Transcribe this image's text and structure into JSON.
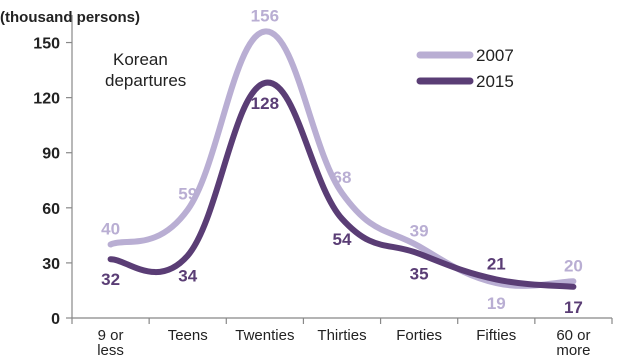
{
  "chart_data": {
    "type": "line",
    "unit_label": "(thousand persons)",
    "annotation": [
      "Korean",
      "departures"
    ],
    "categories": [
      [
        "9 or",
        "less"
      ],
      [
        "Teens"
      ],
      [
        "Twenties"
      ],
      [
        "Thirties"
      ],
      [
        "Forties"
      ],
      [
        "Fifties"
      ],
      [
        "60 or",
        "more"
      ]
    ],
    "yticks": [
      0,
      30,
      60,
      90,
      120,
      150
    ],
    "ylim": [
      0,
      165
    ],
    "grid": false,
    "legend_position": "top-right",
    "series": [
      {
        "name": "2007",
        "color": "#b9aed3",
        "values": [
          40,
          59,
          156,
          68,
          39,
          19,
          20
        ]
      },
      {
        "name": "2015",
        "color": "#5a3d75",
        "values": [
          32,
          34,
          128,
          54,
          35,
          21,
          17
        ]
      }
    ]
  }
}
